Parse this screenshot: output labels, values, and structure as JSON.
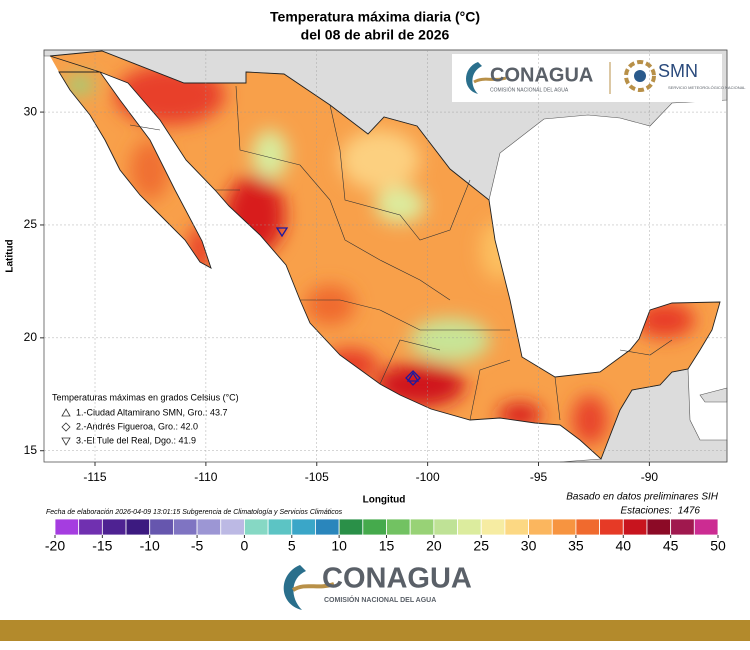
{
  "title": "Temperatura máxima diaria (°C)",
  "subtitle": "del 08 de abril de 2026",
  "map": {
    "xlabel": "Longitud",
    "ylabel": "Latitud",
    "xlim": [
      -117.3,
      -86.5
    ],
    "ylim": [
      14.5,
      32.75
    ],
    "xticks": [
      -115,
      -110,
      -105,
      -100,
      -95,
      -90
    ],
    "yticks": [
      15,
      20,
      25,
      30
    ]
  },
  "legend": {
    "title": "Temperaturas máximas en grados Celsius (°C)",
    "items": [
      "1.-Ciudad Altamirano SMN, Gro.: 43.7",
      "2.-Andrés Figueroa, Gro.: 42.0",
      "3.-El Tule del Real, Dgo.: 41.9"
    ]
  },
  "credit": "Fecha de elaboración 2026-04-09 13:01:15 Subgerencia de Climatología y Servicios Climáticos",
  "source": "Basado en datos preliminares SIH",
  "stations": "Estaciones:  1476",
  "colorbar": {
    "lim": [
      -20,
      50
    ],
    "ticks": [
      -20,
      -15,
      -10,
      -5,
      0,
      5,
      10,
      15,
      20,
      25,
      30,
      35,
      40,
      45,
      50
    ],
    "colors": [
      "#a53de0",
      "#7030b0",
      "#4e2292",
      "#3c1a80",
      "#6656ae",
      "#7f74c2",
      "#9c96d4",
      "#bcb9e4",
      "#86d8c4",
      "#5cc4c4",
      "#3aa6c8",
      "#2a86bc",
      "#2a9048",
      "#45aa4c",
      "#72c262",
      "#98d276",
      "#bfe296",
      "#dcec9e",
      "#f6eca2",
      "#fcd883",
      "#fbb65e",
      "#f79440",
      "#f06a2e",
      "#e63a26",
      "#c8141e",
      "#8c0a26",
      "#a0184e",
      "#cc2c92"
    ]
  },
  "logo": {
    "name": "CONAGUA",
    "tagline": "COMISIÓN NACIONAL DEL AGUA",
    "smn": "SMN",
    "smn_tagline": "SERVICIO METEOROLÓGICO NACIONAL"
  }
}
